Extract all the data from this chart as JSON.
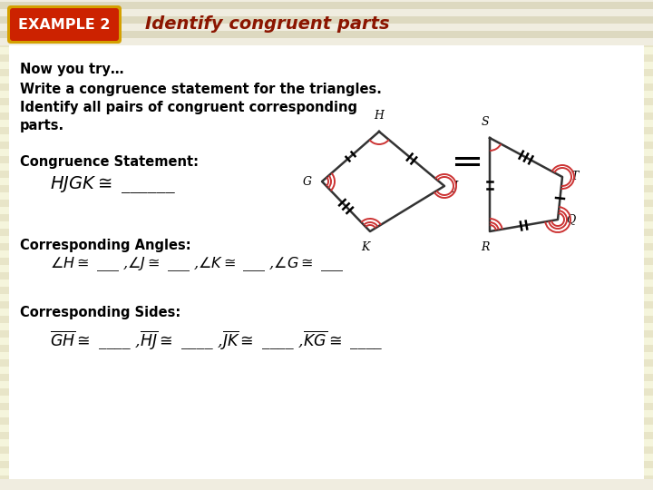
{
  "bg_stripe_light": "#f5f5dc",
  "bg_stripe_dark": "#e8e5c8",
  "header_stripe_light": "#f0ede0",
  "header_stripe_dark": "#ddd9c0",
  "body_bg": "#ffffff",
  "example_box_color": "#cc2200",
  "example_box_border": "#ffcc00",
  "example_text": "EXAMPLE 2",
  "title_text": "Identify congruent parts",
  "title_color": "#8b1500",
  "now_try": "Now you try…",
  "instruction_line1": "Write a congruence statement for the triangles.",
  "instruction_line2": "Identify all pairs of congruent corresponding",
  "instruction_line3": "parts.",
  "congruence_label": "Congruence Statement:",
  "angles_label": "Corresponding Angles:",
  "sides_label": "Corresponding Sides:",
  "arc_color": "#cc3333",
  "quad_color": "#333333",
  "footer_color": "#f0ede0"
}
